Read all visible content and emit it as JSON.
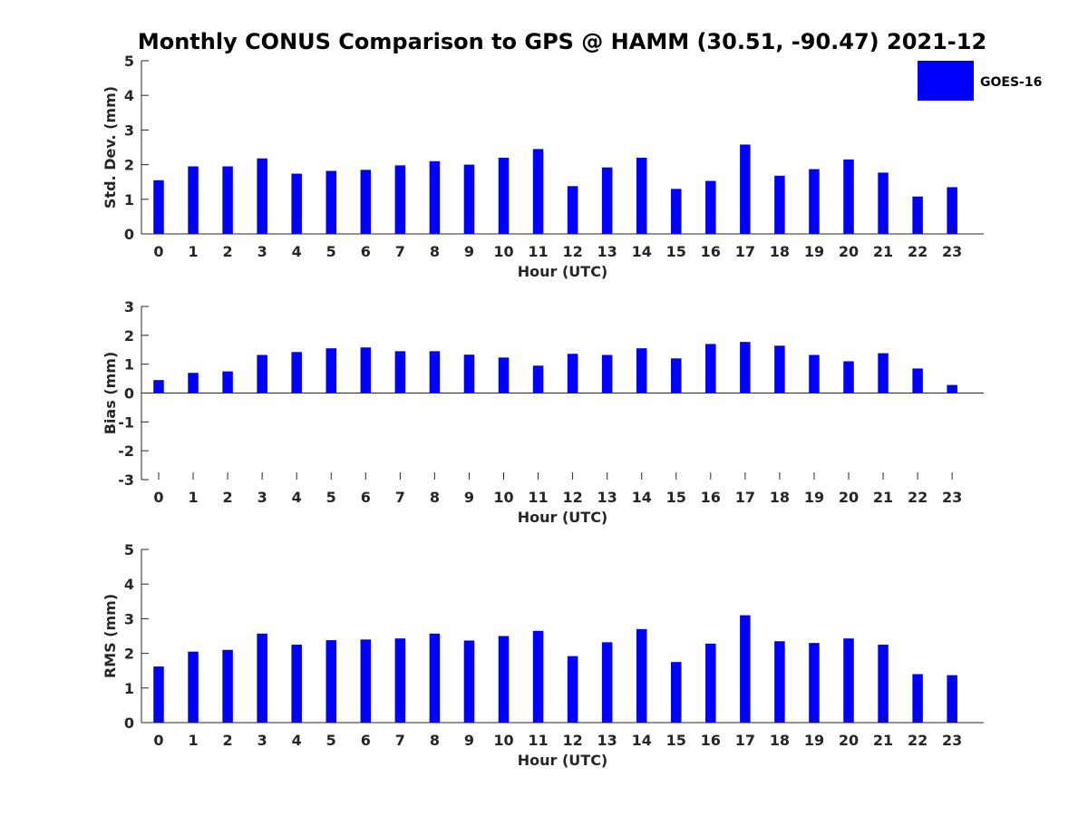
{
  "figure": {
    "title": "Monthly CONUS Comparison to GPS @ HAMM (30.51, -90.47) 2021-12",
    "legend": {
      "label": "GOES-16",
      "color": "#0000ff",
      "position": "top-right"
    }
  },
  "chart_data": [
    {
      "type": "bar",
      "xlabel": "Hour (UTC)",
      "ylabel": "Std. Dev. (mm)",
      "ylim": [
        0,
        5
      ],
      "yticks": [
        "0",
        "1",
        "2",
        "3",
        "4",
        "5"
      ],
      "categories": [
        "0",
        "1",
        "2",
        "3",
        "4",
        "5",
        "6",
        "7",
        "8",
        "9",
        "10",
        "11",
        "12",
        "13",
        "14",
        "15",
        "16",
        "17",
        "18",
        "19",
        "20",
        "21",
        "22",
        "23"
      ],
      "series": [
        {
          "name": "GOES-16",
          "color": "#0000ff",
          "values": [
            1.55,
            1.95,
            1.95,
            2.18,
            1.74,
            1.82,
            1.85,
            1.98,
            2.1,
            2.0,
            2.2,
            2.45,
            1.38,
            1.92,
            2.2,
            1.3,
            1.53,
            2.58,
            1.68,
            1.87,
            2.15,
            1.77,
            1.08,
            1.35
          ]
        }
      ]
    },
    {
      "type": "bar",
      "xlabel": "Hour (UTC)",
      "ylabel": "Bias (mm)",
      "ylim": [
        -3,
        3
      ],
      "yticks": [
        "-3",
        "-2",
        "-1",
        "0",
        "1",
        "2",
        "3"
      ],
      "categories": [
        "0",
        "1",
        "2",
        "3",
        "4",
        "5",
        "6",
        "7",
        "8",
        "9",
        "10",
        "11",
        "12",
        "13",
        "14",
        "15",
        "16",
        "17",
        "18",
        "19",
        "20",
        "21",
        "22",
        "23"
      ],
      "series": [
        {
          "name": "GOES-16",
          "color": "#0000ff",
          "values": [
            0.45,
            0.7,
            0.75,
            1.32,
            1.42,
            1.55,
            1.58,
            1.45,
            1.45,
            1.33,
            1.23,
            0.95,
            1.36,
            1.32,
            1.55,
            1.2,
            1.7,
            1.77,
            1.64,
            1.32,
            1.1,
            1.38,
            0.85,
            0.28
          ]
        }
      ]
    },
    {
      "type": "bar",
      "xlabel": "Hour (UTC)",
      "ylabel": "RMS (mm)",
      "ylim": [
        0,
        5
      ],
      "yticks": [
        "0",
        "1",
        "2",
        "3",
        "4",
        "5"
      ],
      "categories": [
        "0",
        "1",
        "2",
        "3",
        "4",
        "5",
        "6",
        "7",
        "8",
        "9",
        "10",
        "11",
        "12",
        "13",
        "14",
        "15",
        "16",
        "17",
        "18",
        "19",
        "20",
        "21",
        "22",
        "23"
      ],
      "series": [
        {
          "name": "GOES-16",
          "color": "#0000ff",
          "values": [
            1.62,
            2.05,
            2.1,
            2.57,
            2.25,
            2.38,
            2.4,
            2.43,
            2.57,
            2.37,
            2.5,
            2.65,
            1.92,
            2.32,
            2.7,
            1.75,
            2.28,
            3.1,
            2.35,
            2.3,
            2.43,
            2.25,
            1.4,
            1.37
          ]
        }
      ]
    }
  ]
}
